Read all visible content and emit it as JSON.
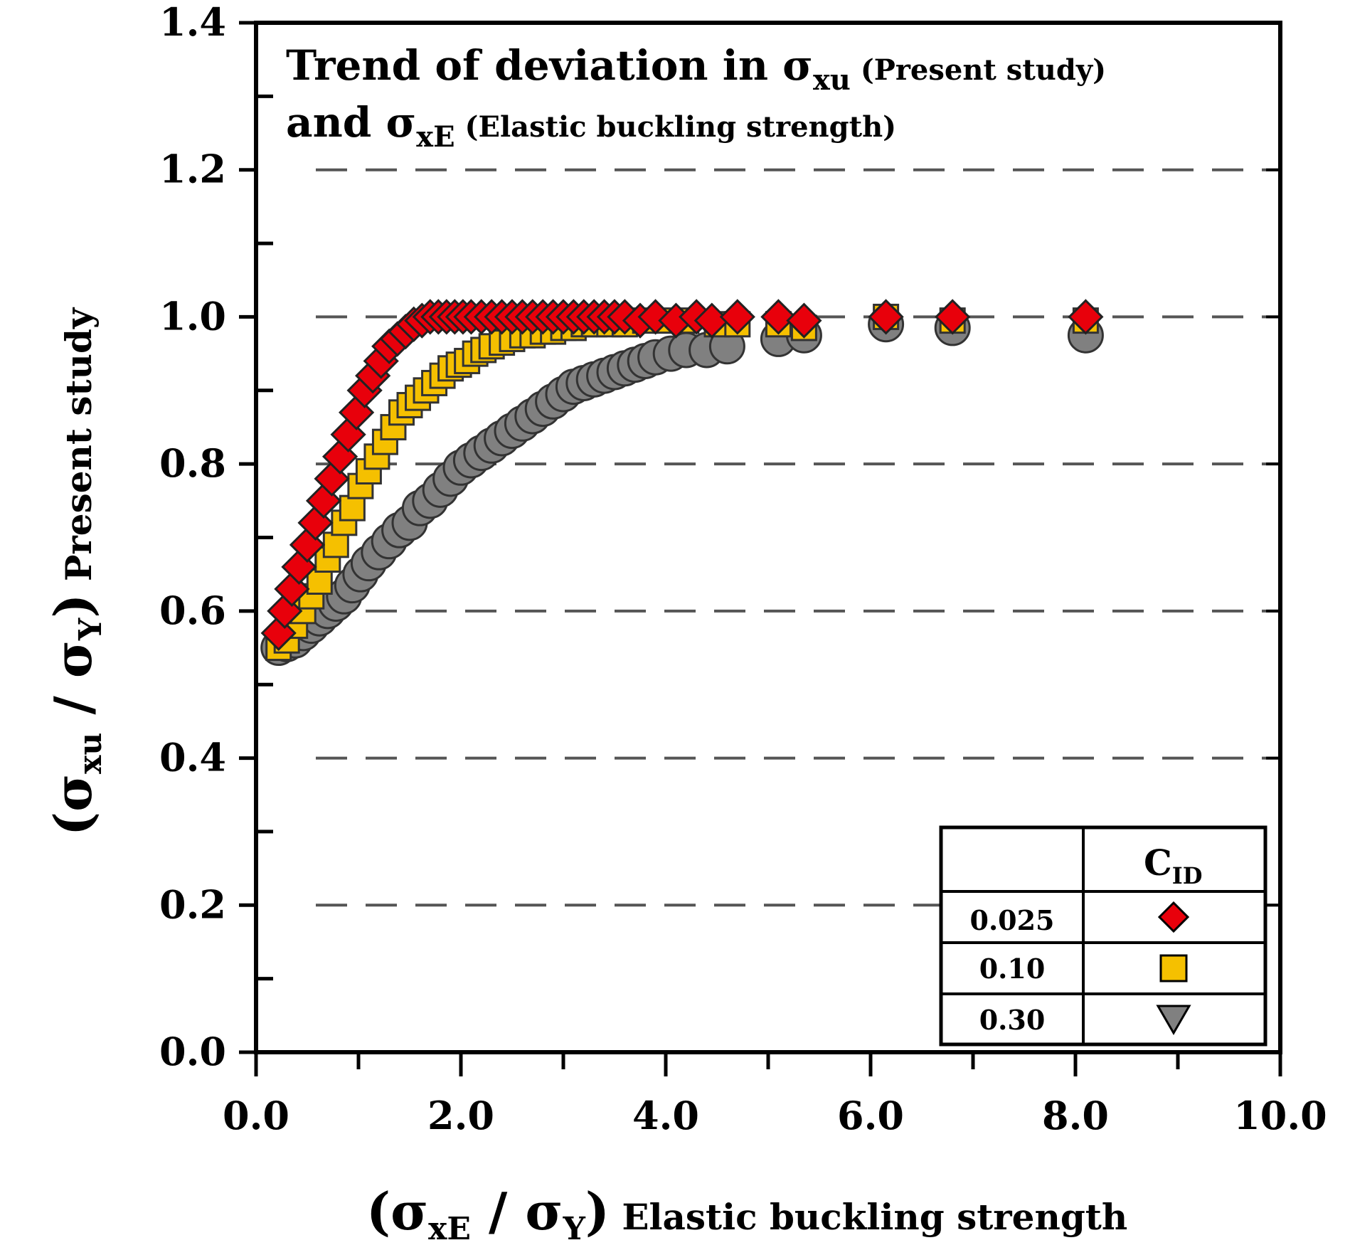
{
  "chart_data": {
    "type": "scatter",
    "title_line1_main": "Trend of deviation in σ",
    "title_line1_sub": "xu",
    "title_line1_note": " (Present study)",
    "title_line2_main": "and σ",
    "title_line2_sub": "xE",
    "title_line2_note": " (Elastic buckling strength)",
    "xlabel_open": "(σ",
    "xlabel_sub1": "xE",
    "xlabel_mid": " / σ",
    "xlabel_sub2": "Y",
    "xlabel_close": ")",
    "xlabel_note": " Elastic buckling strength",
    "ylabel_open": "(σ",
    "ylabel_sub1": "xu",
    "ylabel_mid": " / σ",
    "ylabel_sub2": "Y",
    "ylabel_close": ")",
    "ylabel_note": " Present study",
    "xlim": [
      0,
      10
    ],
    "ylim": [
      0,
      1.4
    ],
    "x_ticks": [
      "0.0",
      "2.0",
      "4.0",
      "6.0",
      "8.0",
      "10.0"
    ],
    "y_ticks": [
      "0.0",
      "0.2",
      "0.4",
      "0.6",
      "0.8",
      "1.0",
      "1.2",
      "1.4"
    ],
    "grid": "horizontal dashed at 0.2 intervals",
    "legend_header": "C",
    "legend_header_sub": "ID",
    "legend_position": "bottom-right",
    "series": [
      {
        "name": "0.025",
        "marker": "diamond",
        "color": "#e8000b",
        "x": [
          0.22,
          0.28,
          0.35,
          0.42,
          0.5,
          0.58,
          0.66,
          0.74,
          0.82,
          0.9,
          0.98,
          1.06,
          1.14,
          1.22,
          1.3,
          1.38,
          1.46,
          1.54,
          1.62,
          1.7,
          1.78,
          1.86,
          1.94,
          2.02,
          2.1,
          2.2,
          2.3,
          2.4,
          2.5,
          2.6,
          2.7,
          2.8,
          2.9,
          3.0,
          3.1,
          3.2,
          3.3,
          3.4,
          3.5,
          3.6,
          3.75,
          3.9,
          4.1,
          4.3,
          4.45,
          4.7,
          5.1,
          5.35,
          6.15,
          6.8,
          8.1
        ],
        "y": [
          0.57,
          0.6,
          0.63,
          0.66,
          0.69,
          0.72,
          0.75,
          0.78,
          0.81,
          0.84,
          0.87,
          0.9,
          0.92,
          0.94,
          0.96,
          0.97,
          0.98,
          0.99,
          0.995,
          1.0,
          1.0,
          1.0,
          1.0,
          1.0,
          1.0,
          1.0,
          1.0,
          1.0,
          1.0,
          1.0,
          1.0,
          1.0,
          1.0,
          1.0,
          1.0,
          1.0,
          1.0,
          1.0,
          1.0,
          1.0,
          0.995,
          1.0,
          0.995,
          1.0,
          0.995,
          1.0,
          1.0,
          0.995,
          1.0,
          1.0,
          1.0
        ]
      },
      {
        "name": "0.10",
        "marker": "square",
        "color": "#f5c000",
        "x": [
          0.22,
          0.3,
          0.38,
          0.46,
          0.54,
          0.62,
          0.7,
          0.78,
          0.86,
          0.94,
          1.02,
          1.1,
          1.18,
          1.26,
          1.34,
          1.42,
          1.5,
          1.58,
          1.66,
          1.74,
          1.82,
          1.9,
          1.98,
          2.06,
          2.14,
          2.22,
          2.3,
          2.4,
          2.5,
          2.6,
          2.7,
          2.8,
          2.9,
          3.0,
          3.1,
          3.2,
          3.3,
          3.45,
          3.6,
          3.8,
          4.0,
          4.2,
          4.5,
          4.7,
          5.1,
          5.35,
          6.15,
          6.8,
          8.1
        ],
        "y": [
          0.55,
          0.56,
          0.58,
          0.6,
          0.62,
          0.64,
          0.67,
          0.69,
          0.72,
          0.74,
          0.77,
          0.79,
          0.81,
          0.83,
          0.85,
          0.87,
          0.88,
          0.89,
          0.9,
          0.91,
          0.92,
          0.93,
          0.935,
          0.94,
          0.95,
          0.955,
          0.96,
          0.965,
          0.97,
          0.975,
          0.975,
          0.98,
          0.98,
          0.985,
          0.985,
          0.99,
          0.99,
          0.99,
          0.99,
          0.995,
          0.995,
          0.995,
          0.99,
          0.99,
          0.99,
          0.985,
          1.0,
          0.995,
          0.995
        ]
      },
      {
        "name": "0.30",
        "marker": "circle",
        "color": "#808080",
        "x": [
          0.22,
          0.3,
          0.38,
          0.46,
          0.54,
          0.62,
          0.7,
          0.78,
          0.86,
          0.94,
          1.02,
          1.1,
          1.2,
          1.3,
          1.4,
          1.5,
          1.6,
          1.7,
          1.8,
          1.9,
          2.0,
          2.1,
          2.2,
          2.3,
          2.4,
          2.5,
          2.6,
          2.7,
          2.8,
          2.9,
          3.0,
          3.1,
          3.2,
          3.3,
          3.4,
          3.5,
          3.6,
          3.7,
          3.8,
          3.9,
          4.05,
          4.2,
          4.4,
          4.6,
          5.1,
          5.35,
          6.15,
          6.8,
          8.1
        ],
        "y": [
          0.55,
          0.555,
          0.56,
          0.57,
          0.58,
          0.59,
          0.6,
          0.61,
          0.62,
          0.635,
          0.65,
          0.665,
          0.68,
          0.695,
          0.71,
          0.72,
          0.74,
          0.75,
          0.765,
          0.78,
          0.795,
          0.805,
          0.815,
          0.825,
          0.835,
          0.845,
          0.855,
          0.865,
          0.875,
          0.885,
          0.895,
          0.905,
          0.91,
          0.915,
          0.92,
          0.925,
          0.93,
          0.935,
          0.94,
          0.945,
          0.95,
          0.955,
          0.955,
          0.96,
          0.97,
          0.975,
          0.99,
          0.985,
          0.975
        ]
      }
    ]
  }
}
